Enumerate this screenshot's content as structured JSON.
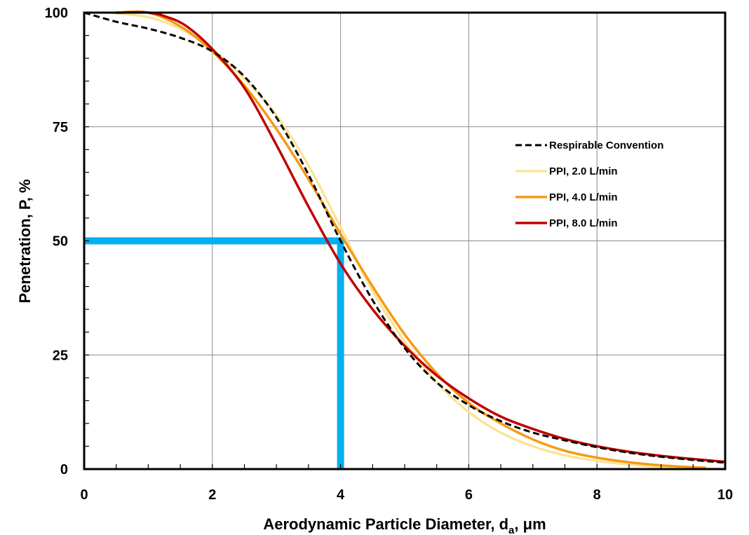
{
  "chart_data": {
    "type": "line",
    "xlabel": "Aerodynamic Particle Diameter, d",
    "xlabel_sub": "a",
    "xlabel_unit": ", μm",
    "ylabel": "Penetration, P, %",
    "xlim": [
      0,
      10
    ],
    "ylim": [
      0,
      100
    ],
    "xticks": [
      "0",
      "2",
      "4",
      "6",
      "8",
      "10"
    ],
    "yticks": [
      "0",
      "25",
      "50",
      "75",
      "100"
    ],
    "grid": true,
    "legend_position": "right-upper",
    "series": [
      {
        "name": "Respirable Convention",
        "color": "#000000",
        "style": "dashed",
        "x": [
          0,
          0.5,
          1,
          1.5,
          2,
          2.5,
          3,
          3.5,
          4,
          4.5,
          5,
          5.5,
          6,
          6.5,
          7,
          7.5,
          8,
          8.5,
          9,
          9.5,
          10
        ],
        "y": [
          100,
          98,
          96.5,
          94.5,
          91.5,
          86,
          77,
          64.5,
          50,
          37,
          26.5,
          19,
          14,
          10.5,
          8,
          6.3,
          4.8,
          3.6,
          2.7,
          2,
          1.4
        ]
      },
      {
        "name": "PPI, 2.0 L/min",
        "color": "#FBE39B",
        "style": "solid",
        "x": [
          0.4,
          1,
          1.5,
          2,
          2.5,
          3,
          3.5,
          4,
          4.5,
          5,
          5.5,
          6,
          6.5,
          7,
          7.5,
          8,
          8.5,
          9,
          9.5,
          10
        ],
        "y": [
          100,
          99,
          96.5,
          92,
          85.5,
          77.5,
          66.5,
          53,
          39,
          28,
          19,
          12.5,
          8,
          5,
          3,
          1.8,
          1,
          0.5,
          0.2,
          0
        ]
      },
      {
        "name": "PPI, 4.0 L/min",
        "color": "#F59A12",
        "style": "solid",
        "x": [
          0.5,
          1,
          1.5,
          2,
          2.5,
          3,
          3.5,
          4,
          4.5,
          5,
          5.5,
          6,
          6.5,
          7,
          7.5,
          8,
          8.5,
          9,
          9.5,
          9.7
        ],
        "y": [
          100,
          100,
          97,
          91.5,
          84,
          74.5,
          63.5,
          51.5,
          40,
          29.5,
          21,
          14.5,
          10,
          6.5,
          4,
          2.5,
          1.5,
          0.8,
          0.4,
          0.3
        ]
      },
      {
        "name": "PPI, 8.0 L/min",
        "color": "#C00000",
        "style": "solid",
        "x": [
          0.5,
          1,
          1.3,
          1.6,
          2,
          2.5,
          3,
          3.5,
          4,
          4.5,
          5,
          5.5,
          6,
          6.5,
          7,
          7.5,
          8,
          8.5,
          9,
          9.5,
          10
        ],
        "y": [
          100,
          100,
          99,
          97,
          92,
          83.5,
          71,
          57.5,
          45,
          35,
          27,
          20.5,
          15.5,
          11.5,
          8.8,
          6.6,
          5,
          3.8,
          2.9,
          2.2,
          1.6
        ]
      }
    ],
    "annotation_lines": [
      {
        "color": "#00B0F0",
        "x": [
          0,
          4,
          4
        ],
        "y": [
          50,
          50,
          0
        ]
      }
    ]
  }
}
